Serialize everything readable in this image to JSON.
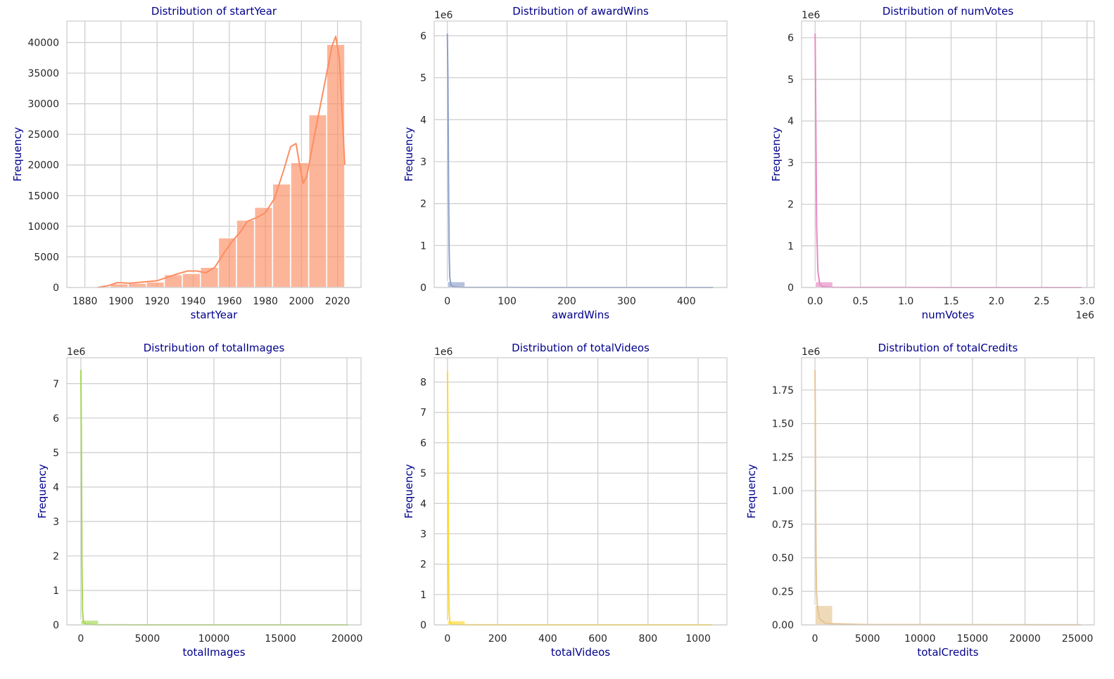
{
  "chart_data": [
    {
      "type": "bar",
      "title": "Distribution of startYear",
      "xlabel": "startYear",
      "ylabel": "Frequency",
      "color": "#fc8d62",
      "xlim": [
        1870,
        2033
      ],
      "ylim": [
        0,
        43500
      ],
      "xticks": [
        1880,
        1900,
        1920,
        1940,
        1960,
        1980,
        2000,
        2020
      ],
      "xtick_labels": [
        "1880",
        "1900",
        "1920",
        "1940",
        "1960",
        "1980",
        "2000",
        "2020"
      ],
      "yticks": [
        0,
        5000,
        10000,
        15000,
        20000,
        25000,
        30000,
        35000,
        40000
      ],
      "ytick_labels": [
        "0",
        "5000",
        "10000",
        "15000",
        "20000",
        "25000",
        "30000",
        "35000",
        "40000"
      ],
      "y_offset_label": "",
      "x_offset_label": "",
      "bin_edges": [
        1874,
        1884,
        1894,
        1904,
        1914,
        1924,
        1934,
        1944,
        1954,
        1964,
        1974,
        1984,
        1994,
        2004,
        2014,
        2024
      ],
      "values": [
        30,
        100,
        600,
        700,
        900,
        2100,
        2300,
        3300,
        8100,
        11000,
        13100,
        16900,
        20400,
        28200,
        39700
      ],
      "kde_x": [
        1887,
        1893,
        1898,
        1905,
        1912,
        1920,
        1926,
        1932,
        1937,
        1942,
        1947,
        1952,
        1957,
        1962,
        1966,
        1970,
        1975,
        1980,
        1985,
        1990,
        1994,
        1997,
        1999,
        2001,
        2003,
        2006,
        2010,
        2014,
        2017,
        2019,
        2021,
        2024
      ],
      "kde_y": [
        0,
        300,
        800,
        700,
        900,
        1100,
        1700,
        2300,
        2700,
        2700,
        2400,
        3300,
        5600,
        7700,
        9000,
        10800,
        11400,
        12200,
        14500,
        19000,
        23000,
        23500,
        20000,
        17000,
        18200,
        23000,
        29000,
        35000,
        39500,
        41000,
        37500,
        20000
      ]
    },
    {
      "type": "bar",
      "title": "Distribution of awardWins",
      "xlabel": "awardWins",
      "ylabel": "Frequency",
      "color": "#8da0cb",
      "xlim": [
        -22,
        468
      ],
      "ylim": [
        0,
        6.35
      ],
      "xticks": [
        0,
        100,
        200,
        300,
        400
      ],
      "xtick_labels": [
        "0",
        "100",
        "200",
        "300",
        "400"
      ],
      "yticks": [
        0,
        1,
        2,
        3,
        4,
        5,
        6
      ],
      "ytick_labels": [
        "0",
        "1",
        "2",
        "3",
        "4",
        "5",
        "6"
      ],
      "y_offset_label": "1e6",
      "x_offset_label": "",
      "bin_edges": [
        0,
        29.7,
        59.4,
        89.1,
        118.8,
        148.5,
        178.2,
        207.9,
        237.6,
        267.3,
        297,
        326.7,
        356.4,
        386.1,
        415.8,
        445.5
      ],
      "values": [
        0.14,
        0.001,
        0.0005,
        0.0003,
        0.0002,
        0.0001,
        0.0001,
        0.0001,
        0.0001,
        0.0001,
        0.0001,
        0.0001,
        0.0001,
        0.0001,
        0.0001
      ],
      "kde_x": [
        0,
        1,
        2,
        3,
        4,
        6,
        10,
        20,
        40,
        100,
        200,
        445
      ],
      "kde_y": [
        6.05,
        5.0,
        2.5,
        0.9,
        0.25,
        0.05,
        0.02,
        0.005,
        0.002,
        0.001,
        0.0005,
        0.0002
      ]
    },
    {
      "type": "bar",
      "title": "Distribution of numVotes",
      "xlabel": "numVotes",
      "ylabel": "Frequency",
      "color": "#e78ac3",
      "xlim": [
        -150000,
        3080000
      ],
      "ylim": [
        0,
        6.4
      ],
      "xticks": [
        0,
        500000,
        1000000,
        1500000,
        2000000,
        2500000,
        3000000
      ],
      "xtick_labels": [
        "0.0",
        "0.5",
        "1.0",
        "1.5",
        "2.0",
        "2.5",
        "3.0"
      ],
      "yticks": [
        0,
        1,
        2,
        3,
        4,
        5,
        6
      ],
      "ytick_labels": [
        "0",
        "1",
        "2",
        "3",
        "4",
        "5",
        "6"
      ],
      "y_offset_label": "1e6",
      "x_offset_label": "1e6",
      "bin_edges": [
        0,
        196000,
        392000,
        588000,
        784000,
        980000,
        1176000,
        1372000,
        1568000,
        1764000,
        1960000,
        2156000,
        2352000,
        2548000,
        2744000,
        2940000
      ],
      "values": [
        0.14,
        0.0005,
        0.0002,
        0.0001,
        0.0001,
        0.0001,
        0.0001,
        0.0001,
        0.0001,
        0.0001,
        0.0001,
        0.0001,
        0.0001,
        0.0001,
        0.0001
      ],
      "kde_x": [
        0,
        8000,
        16000,
        30000,
        50000,
        80000,
        200000,
        500000,
        1500000,
        2940000
      ],
      "kde_y": [
        6.1,
        4.0,
        1.5,
        0.4,
        0.08,
        0.02,
        0.005,
        0.002,
        0.0005,
        0.0002
      ]
    },
    {
      "type": "bar",
      "title": "Distribution of totalImages",
      "xlabel": "totalImages",
      "ylabel": "Frequency",
      "color": "#a6d854",
      "xlim": [
        -1050,
        21050
      ],
      "ylim": [
        0,
        7.75
      ],
      "xticks": [
        0,
        5000,
        10000,
        15000,
        20000
      ],
      "xtick_labels": [
        "0",
        "5000",
        "10000",
        "15000",
        "20000"
      ],
      "yticks": [
        0,
        1,
        2,
        3,
        4,
        5,
        6,
        7
      ],
      "ytick_labels": [
        "0",
        "1",
        "2",
        "3",
        "4",
        "5",
        "6",
        "7"
      ],
      "y_offset_label": "1e6",
      "x_offset_label": "",
      "bin_edges": [
        0,
        1340,
        2680,
        4020,
        5360,
        6700,
        8040,
        9380,
        10720,
        12060,
        13400,
        14740,
        16080,
        17420,
        18760,
        20100
      ],
      "values": [
        0.14,
        0.001,
        0.0005,
        0.0003,
        0.0002,
        0.0001,
        0.0001,
        0.0001,
        0.0001,
        0.0001,
        0.0001,
        0.0001,
        0.0001,
        0.0001,
        0.0001
      ],
      "kde_x": [
        0,
        40,
        80,
        130,
        200,
        400,
        1000,
        5000,
        20100
      ],
      "kde_y": [
        7.4,
        5.5,
        2.0,
        0.4,
        0.08,
        0.02,
        0.005,
        0.001,
        0.0002
      ]
    },
    {
      "type": "bar",
      "title": "Distribution of totalVideos",
      "xlabel": "totalVideos",
      "ylabel": "Frequency",
      "color": "#ffd92f",
      "xlim": [
        -53,
        1115
      ],
      "ylim": [
        0,
        8.8
      ],
      "xticks": [
        0,
        200,
        400,
        600,
        800,
        1000
      ],
      "xtick_labels": [
        "0",
        "200",
        "400",
        "600",
        "800",
        "1000"
      ],
      "yticks": [
        0,
        1,
        2,
        3,
        4,
        5,
        6,
        7,
        8
      ],
      "ytick_labels": [
        "0",
        "1",
        "2",
        "3",
        "4",
        "5",
        "6",
        "7",
        "8"
      ],
      "y_offset_label": "1e6",
      "x_offset_label": "",
      "bin_edges": [
        0,
        70.4,
        140.8,
        211.2,
        281.6,
        352,
        422.4,
        492.8,
        563.2,
        633.6,
        704,
        774.4,
        844.8,
        915.2,
        985.6,
        1056
      ],
      "values": [
        0.14,
        0.001,
        0.0005,
        0.0003,
        0.0002,
        0.0001,
        0.0001,
        0.0001,
        0.0001,
        0.0001,
        0.0001,
        0.0001,
        0.0001,
        0.0001,
        0.0001
      ],
      "kde_x": [
        0,
        2,
        4,
        6,
        9,
        14,
        30,
        100,
        400,
        1056
      ],
      "kde_y": [
        8.35,
        6.0,
        2.2,
        0.5,
        0.1,
        0.03,
        0.01,
        0.003,
        0.001,
        0.0002
      ]
    },
    {
      "type": "bar",
      "title": "Distribution of totalCredits",
      "xlabel": "totalCredits",
      "ylabel": "Frequency",
      "color": "#e5c494",
      "xlim": [
        -1280,
        26600
      ],
      "ylim": [
        0,
        1.99
      ],
      "xticks": [
        0,
        5000,
        10000,
        15000,
        20000,
        25000
      ],
      "xtick_labels": [
        "0",
        "5000",
        "10000",
        "15000",
        "20000",
        "25000"
      ],
      "yticks": [
        0,
        0.25,
        0.5,
        0.75,
        1.0,
        1.25,
        1.5,
        1.75
      ],
      "ytick_labels": [
        "0.00",
        "0.25",
        "0.50",
        "0.75",
        "1.00",
        "1.25",
        "1.50",
        "1.75"
      ],
      "y_offset_label": "1e6",
      "x_offset_label": "",
      "bin_edges": [
        0,
        1690,
        3380,
        5070,
        6760,
        8450,
        10140,
        11830,
        13520,
        15210,
        16900,
        18590,
        20280,
        21970,
        23660,
        25350
      ],
      "values": [
        0.145,
        0.002,
        0.001,
        0.0005,
        0.0003,
        0.0002,
        0.0001,
        0.0001,
        0.0001,
        0.0001,
        0.0001,
        0.0001,
        0.0001,
        0.0001,
        0.0001
      ],
      "kde_x": [
        0,
        30,
        60,
        100,
        150,
        220,
        400,
        1000,
        5000,
        25350
      ],
      "kde_y": [
        1.9,
        1.6,
        1.0,
        0.5,
        0.25,
        0.15,
        0.05,
        0.01,
        0.002,
        0.0005
      ]
    }
  ]
}
